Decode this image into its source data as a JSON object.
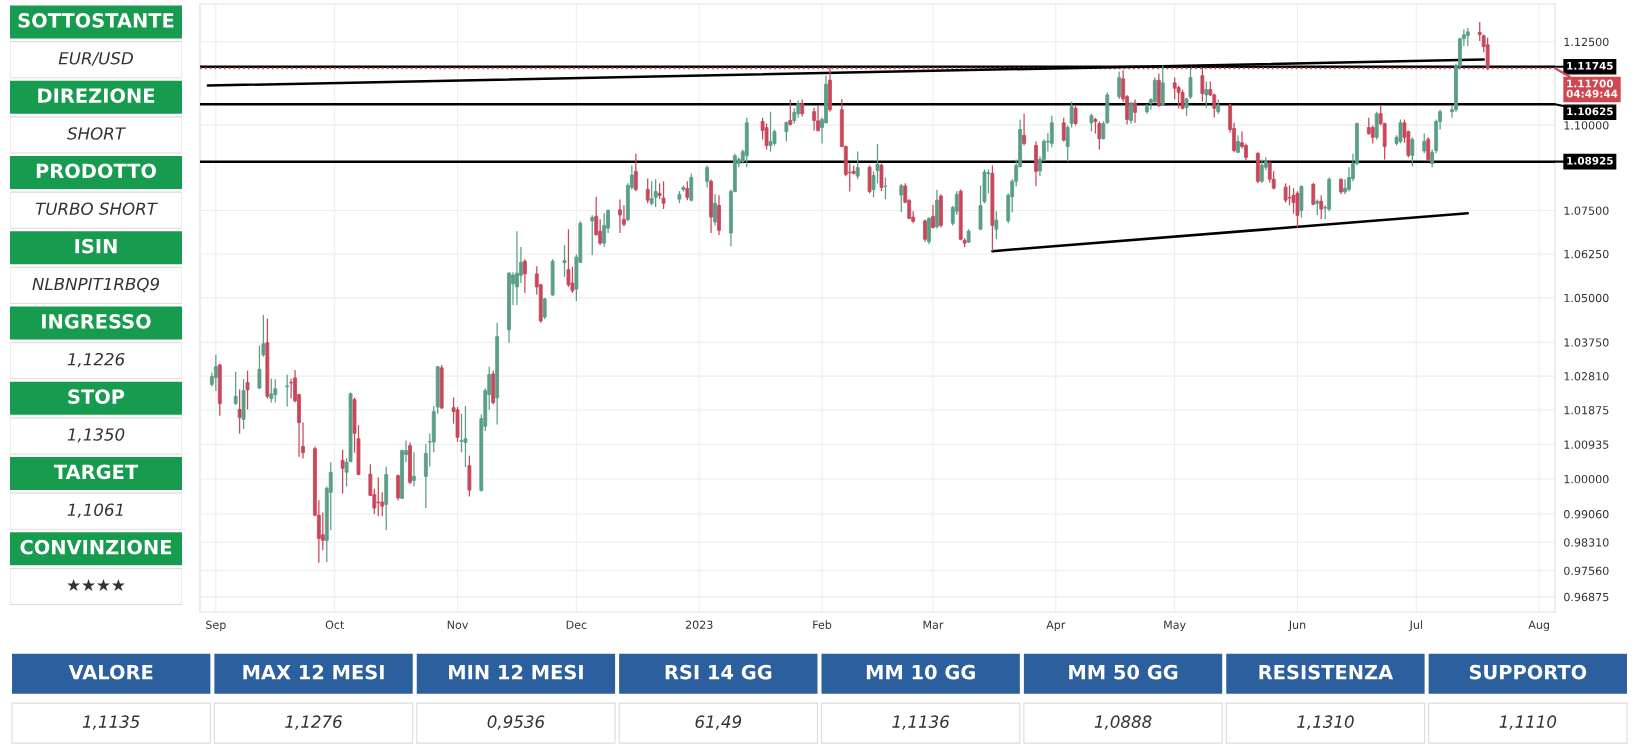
{
  "chart_data": [
    {
      "type": "other",
      "annotations": [
        "SOTTOSTANTE",
        "EUR/USD",
        "DIREZIONE",
        "SHORT",
        "PRODOTTO",
        "TURBO SHORT",
        "ISIN",
        "NLBNPIT1RBQ9",
        "INGRESSO",
        "1,1226",
        "STOP",
        "1,1350",
        "TARGET",
        "1,1061",
        "CONVINZIONE",
        "★★★★"
      ],
      "colors": [
        "#169b4f",
        "#169b4f",
        "#169b4f",
        "#169b4f",
        "#169b4f",
        "#169b4f",
        "#169b4f",
        "#169b4f"
      ]
    },
    {
      "type": "candlestick",
      "x": [
        "2022-08-31",
        "2022-09-01",
        "2022-09-02",
        "2022-09-06",
        "2022-09-07",
        "2022-09-08",
        "2022-09-09",
        "2022-09-12",
        "2022-09-13",
        "2022-09-14",
        "2022-09-15",
        "2022-09-16",
        "2022-09-19",
        "2022-09-20",
        "2022-09-21",
        "2022-09-22",
        "2022-09-23",
        "2022-09-26",
        "2022-09-27",
        "2022-09-28",
        "2022-09-29",
        "2022-09-30",
        "2022-10-03",
        "2022-10-04",
        "2022-10-05",
        "2022-10-06",
        "2022-10-07",
        "2022-10-10",
        "2022-10-11",
        "2022-10-12",
        "2022-10-13",
        "2022-10-14",
        "2022-10-17",
        "2022-10-18",
        "2022-10-19",
        "2022-10-20",
        "2022-10-21",
        "2022-10-24",
        "2022-10-25",
        "2022-10-26",
        "2022-10-27",
        "2022-10-28",
        "2022-10-31",
        "2022-11-01",
        "2022-11-02",
        "2022-11-03",
        "2022-11-04",
        "2022-11-07",
        "2022-11-08",
        "2022-11-09",
        "2022-11-10",
        "2022-11-11",
        "2022-11-14",
        "2022-11-15",
        "2022-11-16",
        "2022-11-17",
        "2022-11-18",
        "2022-11-21",
        "2022-11-22",
        "2022-11-23",
        "2022-11-25",
        "2022-11-28",
        "2022-11-29",
        "2022-11-30",
        "2022-12-01",
        "2022-12-02",
        "2022-12-05",
        "2022-12-06",
        "2022-12-07",
        "2022-12-08",
        "2022-12-09",
        "2022-12-12",
        "2022-12-13",
        "2022-12-14",
        "2022-12-15",
        "2022-12-16",
        "2022-12-19",
        "2022-12-20",
        "2022-12-21",
        "2022-12-22",
        "2022-12-23",
        "2022-12-27",
        "2022-12-28",
        "2022-12-29",
        "2022-12-30",
        "2023-01-03",
        "2023-01-04",
        "2023-01-05",
        "2023-01-06",
        "2023-01-09",
        "2023-01-10",
        "2023-01-11",
        "2023-01-12",
        "2023-01-13",
        "2023-01-17",
        "2023-01-18",
        "2023-01-19",
        "2023-01-20",
        "2023-01-23",
        "2023-01-24",
        "2023-01-25",
        "2023-01-26",
        "2023-01-27",
        "2023-01-30",
        "2023-01-31",
        "2023-02-01",
        "2023-02-02",
        "2023-02-03",
        "2023-02-06",
        "2023-02-07",
        "2023-02-08",
        "2023-02-09",
        "2023-02-10",
        "2023-02-13",
        "2023-02-14",
        "2023-02-15",
        "2023-02-16",
        "2023-02-17",
        "2023-02-21",
        "2023-02-22",
        "2023-02-23",
        "2023-02-24",
        "2023-02-27",
        "2023-02-28",
        "2023-03-01",
        "2023-03-02",
        "2023-03-03",
        "2023-03-06",
        "2023-03-07",
        "2023-03-08",
        "2023-03-09",
        "2023-03-10",
        "2023-03-13",
        "2023-03-14",
        "2023-03-15",
        "2023-03-16",
        "2023-03-17",
        "2023-03-20",
        "2023-03-21",
        "2023-03-22",
        "2023-03-23",
        "2023-03-24",
        "2023-03-27",
        "2023-03-28",
        "2023-03-29",
        "2023-03-30",
        "2023-03-31",
        "2023-04-03",
        "2023-04-04",
        "2023-04-05",
        "2023-04-06",
        "2023-04-10",
        "2023-04-11",
        "2023-04-12",
        "2023-04-13",
        "2023-04-14",
        "2023-04-17",
        "2023-04-18",
        "2023-04-19",
        "2023-04-20",
        "2023-04-21",
        "2023-04-24",
        "2023-04-25",
        "2023-04-26",
        "2023-04-27",
        "2023-04-28",
        "2023-05-01",
        "2023-05-02",
        "2023-05-03",
        "2023-05-04",
        "2023-05-05",
        "2023-05-08",
        "2023-05-09",
        "2023-05-10",
        "2023-05-11",
        "2023-05-12",
        "2023-05-15",
        "2023-05-16",
        "2023-05-17",
        "2023-05-18",
        "2023-05-19",
        "2023-05-22",
        "2023-05-23",
        "2023-05-24",
        "2023-05-25",
        "2023-05-26",
        "2023-05-29",
        "2023-05-30",
        "2023-05-31",
        "2023-06-01",
        "2023-06-02",
        "2023-06-05",
        "2023-06-06",
        "2023-06-07",
        "2023-06-08",
        "2023-06-09",
        "2023-06-12",
        "2023-06-13",
        "2023-06-14",
        "2023-06-15",
        "2023-06-16",
        "2023-06-19",
        "2023-06-20",
        "2023-06-21",
        "2023-06-22",
        "2023-06-23",
        "2023-06-26",
        "2023-06-27",
        "2023-06-28",
        "2023-06-29",
        "2023-06-30",
        "2023-07-03",
        "2023-07-04",
        "2023-07-05",
        "2023-07-06",
        "2023-07-07",
        "2023-07-10",
        "2023-07-11",
        "2023-07-12",
        "2023-07-13",
        "2023-07-14",
        "2023-07-17",
        "2023-07-18",
        "2023-07-19"
      ],
      "ohlc": [
        [
          1.0258,
          1.0291,
          1.0252,
          1.028
        ],
        [
          1.0277,
          1.034,
          1.024,
          1.0307
        ],
        [
          1.0312,
          1.0315,
          1.0172,
          1.0205
        ],
        [
          1.0205,
          1.0293,
          1.0202,
          1.0225
        ],
        [
          1.0189,
          1.0244,
          1.0123,
          1.0167
        ],
        [
          1.0162,
          1.0272,
          1.0136,
          1.0241
        ],
        [
          1.0263,
          1.0296,
          1.0189,
          1.0243
        ],
        [
          1.0248,
          1.0366,
          1.0245,
          1.03
        ],
        [
          1.034,
          1.0452,
          1.0335,
          1.0371
        ],
        [
          1.0374,
          1.0441,
          1.0219,
          1.0225
        ],
        [
          1.0219,
          1.0274,
          1.0208,
          1.0232
        ],
        [
          1.023,
          1.0272,
          1.0208,
          1.0246
        ],
        [
          1.0252,
          1.0285,
          1.0197,
          1.0254
        ],
        [
          1.0263,
          1.0274,
          1.0219,
          1.0262
        ],
        [
          1.0276,
          1.0298,
          1.0208,
          1.0213
        ],
        [
          1.023,
          1.0232,
          1.006,
          1.0153
        ],
        [
          1.0088,
          1.0153,
          1.0055,
          1.0071
        ],
        [
          1.0082,
          1.0088,
          0.99,
          0.9903
        ],
        [
          0.9903,
          0.9943,
          0.9777,
          0.9841
        ],
        [
          0.9851,
          0.991,
          0.981,
          0.9836
        ],
        [
          0.9836,
          0.998,
          0.9779,
          0.9975
        ],
        [
          0.9964,
          1.0045,
          0.9863,
          1.0018
        ],
        [
          1.005,
          1.0079,
          0.9961,
          1.0029
        ],
        [
          1.0018,
          1.0056,
          0.998,
          1.0045
        ],
        [
          1.0047,
          1.0236,
          1.0045,
          1.0232
        ],
        [
          1.0216,
          1.0222,
          1.0071,
          1.0124
        ],
        [
          1.0109,
          1.0146,
          1.001,
          1.0012
        ],
        [
          1.0013,
          1.004,
          0.9954,
          0.9956
        ],
        [
          0.9958,
          0.9974,
          0.9906,
          0.9922
        ],
        [
          0.9938,
          1.0004,
          0.99,
          0.9936
        ],
        [
          0.9938,
          0.9964,
          0.99,
          0.9927
        ],
        [
          0.9932,
          1.0034,
          0.9863,
          1.0012
        ],
        [
          1.0009,
          1.0012,
          0.9942,
          0.9949
        ],
        [
          0.9948,
          1.0079,
          0.9946,
          1.0077
        ],
        [
          1.0066,
          1.0104,
          1.0045,
          1.0077
        ],
        [
          1.009,
          1.0099,
          0.9986,
          0.9991
        ],
        [
          0.9996,
          1.0072,
          0.998,
          1.0007
        ],
        [
          1.0007,
          1.0094,
          0.9922,
          1.0069
        ],
        [
          1.01,
          1.0123,
          1.0034,
          1.0101
        ],
        [
          1.01,
          1.0198,
          1.0072,
          1.0183
        ],
        [
          1.0196,
          1.0309,
          1.0177,
          1.0307
        ],
        [
          1.0304,
          1.0312,
          1.019,
          1.0193
        ],
        [
          1.0194,
          1.0222,
          1.015,
          1.0183
        ],
        [
          1.0188,
          1.0196,
          1.0101,
          1.0113
        ],
        [
          1.0102,
          1.0177,
          1.0072,
          1.0104
        ],
        [
          1.0099,
          1.0199,
          1.0032,
          1.0109
        ],
        [
          1.0036,
          1.0063,
          0.9953,
          0.997
        ],
        [
          0.9969,
          1.0175,
          0.9966,
          1.0164
        ],
        [
          1.0143,
          1.0247,
          1.013,
          1.0241
        ],
        [
          1.023,
          1.0307,
          1.0188,
          1.0285
        ],
        [
          1.0287,
          1.0296,
          1.0203,
          1.0208
        ],
        [
          1.0221,
          1.043,
          1.0148,
          1.0391
        ],
        [
          1.041,
          1.0573,
          1.0374,
          1.057
        ],
        [
          1.054,
          1.0573,
          1.048,
          1.0565
        ],
        [
          1.0531,
          1.069,
          1.048,
          1.057
        ],
        [
          1.0564,
          1.0645,
          1.0542,
          1.0601
        ],
        [
          1.0604,
          1.061,
          1.0514,
          1.0568
        ],
        [
          1.0568,
          1.059,
          1.0509,
          1.0531
        ],
        [
          1.0537,
          1.054,
          1.043,
          1.0435
        ],
        [
          1.0446,
          1.05,
          1.044,
          1.0497
        ],
        [
          1.0508,
          1.061,
          1.0506,
          1.0604
        ],
        [
          1.06,
          1.065,
          1.056,
          1.0606
        ],
        [
          1.058,
          1.0696,
          1.0531,
          1.0537
        ],
        [
          1.0542,
          1.0588,
          1.0514,
          1.052
        ],
        [
          1.0525,
          1.0624,
          1.0491,
          1.0616
        ],
        [
          1.0601,
          1.0719,
          1.0599,
          1.0713
        ],
        [
          1.072,
          1.0736,
          1.0622,
          1.073
        ],
        [
          1.0733,
          1.079,
          1.0678,
          1.068
        ],
        [
          1.069,
          1.0725,
          1.065,
          1.0656
        ],
        [
          1.0656,
          1.0742,
          1.0645,
          1.0707
        ],
        [
          1.0699,
          1.0754,
          1.0685,
          1.075
        ],
        [
          1.0752,
          1.0782,
          1.0685,
          1.0737
        ],
        [
          1.0724,
          1.0765,
          1.0704,
          1.071
        ],
        [
          1.0724,
          1.0829,
          1.0719,
          1.0823
        ],
        [
          1.0817,
          1.0881,
          1.0811,
          1.0853
        ],
        [
          1.0864,
          1.0916,
          1.0806,
          1.0811
        ],
        [
          1.0811,
          1.0843,
          1.0771,
          1.078
        ],
        [
          1.0771,
          1.0835,
          1.0765,
          1.0785
        ],
        [
          1.0788,
          1.0841,
          1.076,
          1.0805
        ],
        [
          1.08,
          1.0829,
          1.0783,
          1.0794
        ],
        [
          1.0786,
          1.0835,
          1.0754,
          1.0771
        ],
        [
          1.0783,
          1.0806,
          1.0771,
          1.0797
        ],
        [
          1.0811,
          1.0823,
          1.0805,
          1.0817
        ],
        [
          1.0814,
          1.0835,
          1.078,
          1.0788
        ],
        [
          1.078,
          1.0858,
          1.0776,
          1.0846
        ],
        [
          1.0835,
          1.0881,
          1.0817,
          1.0875
        ],
        [
          1.0835,
          1.084,
          1.0685,
          1.0731
        ],
        [
          1.0717,
          1.0797,
          1.0707,
          1.0771
        ],
        [
          1.0765,
          1.0794,
          1.0679,
          1.0693
        ],
        [
          1.0685,
          1.0811,
          1.0647,
          1.0805
        ],
        [
          1.0805,
          1.0916,
          1.0803,
          1.091
        ],
        [
          1.0887,
          1.0905,
          1.0876,
          1.0899
        ],
        [
          1.0893,
          1.0928,
          1.0887,
          1.0922
        ],
        [
          1.091,
          1.1022,
          1.0876,
          1.1007
        ],
        [
          1.1011,
          1.1022,
          1.0958,
          1.0984
        ],
        [
          1.0993,
          1.1005,
          1.0928,
          1.094
        ],
        [
          1.094,
          1.104,
          1.0922,
          1.0952
        ],
        [
          1.0946,
          1.0987,
          1.094,
          1.0981
        ],
        [
          1.0981,
          1.1011,
          1.0952,
          1.1008
        ],
        [
          1.1014,
          1.1076,
          1.0999,
          1.1002
        ],
        [
          1.1014,
          1.105,
          1.1005,
          1.1038
        ],
        [
          1.1034,
          1.1073,
          1.1022,
          1.1064
        ],
        [
          1.1064,
          1.1076,
          1.1026,
          1.1034
        ],
        [
          1.104,
          1.1052,
          1.0984,
          1.1014
        ],
        [
          1.1013,
          1.1058,
          1.0981,
          1.0984
        ],
        [
          1.0993,
          1.1023,
          1.0946,
          1.1017
        ],
        [
          1.1007,
          1.1148,
          1.1005,
          1.1122
        ],
        [
          1.1134,
          1.1172,
          1.104,
          1.1046
        ],
        [
          1.1046,
          1.1078,
          1.0935,
          1.0937
        ],
        [
          1.0937,
          1.094,
          1.085,
          1.0855
        ],
        [
          1.0862,
          1.0887,
          1.0805,
          1.086
        ],
        [
          1.0864,
          1.0881,
          1.0855,
          1.0858
        ],
        [
          1.085,
          1.0922,
          1.0841,
          1.0875
        ],
        [
          1.0876,
          1.0881,
          1.08,
          1.0805
        ],
        [
          1.0811,
          1.0864,
          1.0788,
          1.0852
        ],
        [
          1.0866,
          1.0945,
          1.0829,
          1.0885
        ],
        [
          1.0882,
          1.0887,
          1.0806,
          1.0817
        ],
        [
          1.082,
          1.0846,
          1.0783,
          1.0821
        ],
        [
          1.0795,
          1.0828,
          1.0746,
          1.0822
        ],
        [
          1.0821,
          1.0829,
          1.0771,
          1.0774
        ],
        [
          1.078,
          1.0782,
          1.0725,
          1.0727
        ],
        [
          1.0731,
          1.0748,
          1.0713,
          1.0719
        ],
        [
          1.072,
          1.0724,
          1.066,
          1.0667
        ],
        [
          1.066,
          1.0731,
          1.0653,
          1.0727
        ],
        [
          1.0733,
          1.0766,
          1.0698,
          1.0701
        ],
        [
          1.0703,
          1.081,
          1.0698,
          1.078
        ],
        [
          1.0792,
          1.0797,
          1.0701,
          1.0707
        ],
        [
          1.0713,
          1.0764,
          1.0707,
          1.0759
        ],
        [
          1.0748,
          1.0806,
          1.0738,
          1.0797
        ],
        [
          1.0806,
          1.0811,
          1.0664,
          1.0667
        ],
        [
          1.0664,
          1.067,
          1.0644,
          1.0656
        ],
        [
          1.0659,
          1.0696,
          1.0656,
          1.069
        ],
        [
          1.0696,
          1.0823,
          1.0693,
          1.0764
        ],
        [
          1.0776,
          1.087,
          1.0771,
          1.0862
        ],
        [
          1.0857,
          1.087,
          1.08,
          1.086
        ],
        [
          1.0858,
          1.0881,
          1.0633,
          1.0707
        ],
        [
          1.0696,
          1.0748,
          1.0667,
          1.0722
        ],
        [
          1.072,
          1.08,
          1.0713,
          1.0794
        ],
        [
          1.079,
          1.0841,
          1.0744,
          1.0835
        ],
        [
          1.0835,
          1.0899,
          1.082,
          1.0881
        ],
        [
          1.0878,
          1.1017,
          1.0875,
          1.0987
        ],
        [
          1.097,
          1.1034,
          1.094,
          1.0946
        ],
        [
          1.094,
          1.0952,
          1.0821,
          1.0864
        ],
        [
          1.0865,
          1.0908,
          1.085,
          1.0899
        ],
        [
          1.0899,
          1.0958,
          1.0893,
          1.0952
        ],
        [
          1.095,
          1.0976,
          1.0922,
          1.0953
        ],
        [
          1.0946,
          1.1028,
          1.0935,
          1.1007
        ],
        [
          1.1007,
          1.1022,
          1.0952,
          1.0956
        ],
        [
          1.0937,
          1.0999,
          1.0893,
          1.0993
        ],
        [
          1.1005,
          1.107,
          1.0993,
          1.1055
        ],
        [
          1.105,
          1.1058,
          1.0999,
          1.1005
        ],
        [
          1.1007,
          1.1034,
          1.0981,
          1.1028
        ],
        [
          1.1017,
          1.1022,
          1.0975,
          1.1011
        ],
        [
          1.1005,
          1.1011,
          1.0928,
          1.096
        ],
        [
          1.096,
          1.1011,
          1.0958,
          1.1005
        ],
        [
          1.1007,
          1.1097,
          1.1005,
          1.109
        ],
        [
          1.1085,
          1.116,
          1.1078,
          1.1142
        ],
        [
          1.1138,
          1.1164,
          1.107,
          1.1078
        ],
        [
          1.1085,
          1.109,
          1.1002,
          1.1017
        ],
        [
          1.1014,
          1.107,
          1.1005,
          1.1064
        ],
        [
          1.1066,
          1.1076,
          1.1007,
          1.1038
        ],
        [
          1.104,
          1.1064,
          1.1034,
          1.1055
        ],
        [
          1.1065,
          1.108,
          1.1046,
          1.1076
        ],
        [
          1.107,
          1.1142,
          1.1066,
          1.1134
        ],
        [
          1.1134,
          1.1154,
          1.1054,
          1.1058
        ],
        [
          1.1061,
          1.1178,
          1.1058,
          1.1126
        ],
        [
          1.1126,
          1.1142,
          1.1076,
          1.111
        ],
        [
          1.1112,
          1.1118,
          1.105,
          1.1097
        ],
        [
          1.1097,
          1.1106,
          1.1046,
          1.105
        ],
        [
          1.1052,
          1.1082,
          1.1028,
          1.1078
        ],
        [
          1.1084,
          1.1172,
          1.1078,
          1.1142
        ],
        [
          1.1148,
          1.1172,
          1.107,
          1.1094
        ],
        [
          1.109,
          1.113,
          1.1052,
          1.1106
        ],
        [
          1.1106,
          1.113,
          1.1087,
          1.109
        ],
        [
          1.109,
          1.1094,
          1.1023,
          1.105
        ],
        [
          1.104,
          1.1076,
          1.1033,
          1.106
        ],
        [
          1.106,
          1.1064,
          1.0978,
          1.0987
        ],
        [
          1.099,
          1.1007,
          1.092,
          1.0925
        ],
        [
          1.092,
          1.097,
          1.0917,
          1.0952
        ],
        [
          1.0948,
          1.0981,
          1.0931,
          1.0937
        ],
        [
          1.094,
          1.0946,
          1.0897,
          1.0905
        ],
        [
          1.0917,
          1.092,
          1.0829,
          1.0835
        ],
        [
          1.0835,
          1.0899,
          1.0831,
          1.0882
        ],
        [
          1.0876,
          1.0905,
          1.0868,
          1.0893
        ],
        [
          1.0888,
          1.0893,
          1.0831,
          1.0841
        ],
        [
          1.0841,
          1.0864,
          1.0811,
          1.0815
        ],
        [
          1.0818,
          1.0829,
          1.0773,
          1.078
        ],
        [
          1.0788,
          1.0823,
          1.0765,
          1.0786
        ],
        [
          1.0794,
          1.0815,
          1.0741,
          1.0773
        ],
        [
          1.08,
          1.0806,
          1.0701,
          1.0736
        ],
        [
          1.075,
          1.0823,
          1.073,
          1.082
        ],
        [
          1.0826,
          1.0831,
          1.0765,
          1.0768
        ],
        [
          1.0771,
          1.0782,
          1.0736,
          1.0777
        ],
        [
          1.0777,
          1.0794,
          1.0725,
          1.0754
        ],
        [
          1.0757,
          1.0765,
          1.0725,
          1.0759
        ],
        [
          1.0754,
          1.0846,
          1.0748,
          1.0841
        ],
        [
          1.0841,
          1.0843,
          1.0797,
          1.0804
        ],
        [
          1.0804,
          1.0841,
          1.0797,
          1.0815
        ],
        [
          1.0811,
          1.0876,
          1.0805,
          1.0846
        ],
        [
          1.0843,
          1.0916,
          1.0835,
          1.0887
        ],
        [
          1.0887,
          1.1007,
          1.0881,
          1.1005
        ],
        [
          1.0993,
          1.1022,
          1.0972,
          1.0975
        ],
        [
          1.0993,
          1.0999,
          1.0946,
          1.0964
        ],
        [
          1.0964,
          1.104,
          1.0958,
          1.1034
        ],
        [
          1.1034,
          1.1058,
          1.0999,
          1.1005
        ],
        [
          1.1005,
          1.1007,
          1.0899,
          1.0937
        ],
        [
          1.0946,
          1.097,
          1.094,
          1.0964
        ],
        [
          1.0952,
          1.1017,
          1.0946,
          1.1007
        ],
        [
          1.1007,
          1.1017,
          1.0948,
          1.0964
        ],
        [
          1.0981,
          1.0984,
          1.0905,
          1.0911
        ],
        [
          1.0911,
          1.0964,
          1.0878,
          1.0958
        ],
        [
          1.0924,
          1.0975,
          1.0917,
          1.0952
        ],
        [
          1.0958,
          1.0964,
          1.0893,
          1.0899
        ],
        [
          1.0887,
          1.0928,
          1.0876,
          1.092
        ],
        [
          1.0925,
          1.1017,
          1.0917,
          1.1011
        ],
        [
          1.1011,
          1.1046,
          1.0987,
          1.104
        ],
        [
          1.104,
          1.1058,
          1.1022,
          1.1046
        ],
        [
          1.1046,
          1.1184,
          1.104,
          1.1178
        ],
        [
          1.1176,
          1.1262,
          1.1166,
          1.1259
        ],
        [
          1.1259,
          1.1287,
          1.1237,
          1.1271
        ],
        [
          1.1269,
          1.1292,
          1.1237,
          1.128
        ],
        [
          1.1278,
          1.131,
          1.1252,
          1.1272
        ],
        [
          1.1268,
          1.1272,
          1.1218,
          1.1235
        ],
        [
          1.1241,
          1.1262,
          1.1164,
          1.117
        ]
      ],
      "colors": [
        "#5a9e88",
        "#5a9e88",
        "#c9475b",
        "#5a9e88",
        "#c9475b",
        "#5a9e88",
        "#c9475b",
        "#5a9e88",
        "#5a9e88",
        "#c9475b",
        "#5a9e88",
        "#5a9e88",
        "#5a9e88",
        "#c9475b",
        "#c9475b",
        "#c9475b",
        "#c9475b",
        "#c9475b",
        "#c9475b",
        "#c9475b",
        "#5a9e88",
        "#5a9e88",
        "#c9475b",
        "#5a9e88",
        "#5a9e88",
        "#c9475b",
        "#c9475b",
        "#c9475b",
        "#c9475b",
        "#c9475b",
        "#c9475b",
        "#5a9e88",
        "#c9475b",
        "#5a9e88",
        "#5a9e88",
        "#c9475b",
        "#5a9e88",
        "#5a9e88",
        "#5a9e88",
        "#5a9e88",
        "#5a9e88",
        "#c9475b",
        "#c9475b",
        "#c9475b",
        "#5a9e88",
        "#5a9e88",
        "#c9475b",
        "#5a9e88",
        "#5a9e88",
        "#5a9e88",
        "#c9475b",
        "#5a9e88",
        "#5a9e88",
        "#5a9e88",
        "#5a9e88",
        "#5a9e88",
        "#c9475b",
        "#c9475b",
        "#c9475b",
        "#5a9e88",
        "#5a9e88",
        "#5a9e88",
        "#c9475b",
        "#c9475b",
        "#5a9e88",
        "#5a9e88",
        "#5a9e88",
        "#c9475b",
        "#c9475b",
        "#5a9e88",
        "#5a9e88",
        "#c9475b",
        "#c9475b",
        "#5a9e88",
        "#5a9e88",
        "#c9475b",
        "#c9475b",
        "#5a9e88",
        "#5a9e88",
        "#c9475b",
        "#c9475b",
        "#5a9e88",
        "#5a9e88",
        "#c9475b",
        "#5a9e88",
        "#5a9e88",
        "#c9475b",
        "#5a9e88",
        "#c9475b",
        "#5a9e88",
        "#5a9e88",
        "#5a9e88",
        "#5a9e88",
        "#5a9e88",
        "#c9475b",
        "#c9475b",
        "#5a9e88",
        "#5a9e88",
        "#5a9e88",
        "#c9475b",
        "#5a9e88",
        "#5a9e88",
        "#c9475b",
        "#c9475b",
        "#c9475b",
        "#5a9e88",
        "#5a9e88",
        "#c9475b",
        "#c9475b",
        "#c9475b",
        "#c9475b",
        "#c9475b",
        "#5a9e88",
        "#c9475b",
        "#5a9e88",
        "#5a9e88",
        "#c9475b",
        "#5a9e88",
        "#5a9e88",
        "#c9475b",
        "#c9475b",
        "#c9475b",
        "#c9475b",
        "#5a9e88",
        "#c9475b",
        "#5a9e88",
        "#c9475b",
        "#5a9e88",
        "#5a9e88",
        "#c9475b",
        "#c9475b",
        "#5a9e88",
        "#5a9e88",
        "#5a9e88",
        "#5a9e88",
        "#c9475b",
        "#5a9e88",
        "#5a9e88",
        "#5a9e88",
        "#5a9e88",
        "#5a9e88",
        "#c9475b",
        "#c9475b",
        "#5a9e88",
        "#5a9e88",
        "#5a9e88",
        "#5a9e88",
        "#c9475b",
        "#5a9e88",
        "#5a9e88",
        "#c9475b",
        "#5a9e88",
        "#c9475b",
        "#c9475b",
        "#5a9e88",
        "#5a9e88",
        "#5a9e88",
        "#c9475b",
        "#c9475b",
        "#5a9e88",
        "#c9475b",
        "#5a9e88",
        "#5a9e88",
        "#5a9e88",
        "#c9475b",
        "#5a9e88",
        "#c9475b",
        "#c9475b",
        "#c9475b",
        "#5a9e88",
        "#5a9e88",
        "#c9475b",
        "#5a9e88",
        "#c9475b",
        "#c9475b",
        "#5a9e88",
        "#c9475b",
        "#c9475b",
        "#5a9e88",
        "#c9475b",
        "#c9475b",
        "#c9475b",
        "#5a9e88",
        "#5a9e88",
        "#c9475b",
        "#c9475b",
        "#c9475b",
        "#c9475b",
        "#c9475b",
        "#c9475b",
        "#5a9e88",
        "#c9475b",
        "#5a9e88",
        "#c9475b",
        "#5a9e88",
        "#5a9e88",
        "#c9475b",
        "#5a9e88",
        "#5a9e88",
        "#5a9e88",
        "#5a9e88",
        "#c9475b",
        "#c9475b",
        "#5a9e88",
        "#c9475b",
        "#c9475b",
        "#5a9e88",
        "#5a9e88",
        "#c9475b",
        "#c9475b",
        "#5a9e88",
        "#5a9e88",
        "#c9475b",
        "#5a9e88",
        "#5a9e88",
        "#5a9e88",
        "#5a9e88",
        "#5a9e88",
        "#5a9e88",
        "#5a9e88",
        "#5a9e88",
        "#c9475b",
        "#c9475b",
        "#c9475b"
      ],
      "series": [
        {
          "type": "line",
          "x": [
            "2022-08-30",
            "2023-07-18"
          ],
          "values": [
            1.1118,
            1.1196
          ],
          "color": "#000000"
        },
        {
          "type": "line",
          "x": [
            "2023-03-16",
            "2023-07-14"
          ],
          "values": [
            1.0633,
            1.0742
          ],
          "color": "#000000"
        }
      ],
      "ref_lines": [
        {
          "axis": "y",
          "value": 1.11745,
          "label": "1.11745",
          "color": "#000000",
          "line_style": "solid"
        },
        {
          "axis": "y",
          "value": 1.117,
          "label": "1.11700\n04:49:44",
          "color": "#d2474f",
          "line_style": "dotted"
        },
        {
          "axis": "y",
          "value": 1.10625,
          "label": "1.10625",
          "color": "#000000",
          "line_style": "solid"
        },
        {
          "axis": "y",
          "value": 1.08925,
          "label": "1.08925",
          "color": "#000000",
          "line_style": "solid"
        }
      ],
      "log": true,
      "xlim": [
        "2022-08-28",
        "2023-08-05"
      ],
      "xticks": [
        {
          "value": "2022-09-01",
          "label": "Sep"
        },
        {
          "value": "2022-10-01",
          "label": "Oct"
        },
        {
          "value": "2022-11-01",
          "label": "Nov"
        },
        {
          "value": "2022-12-01",
          "label": "Dec"
        },
        {
          "value": "2023-01-01",
          "label": "2023"
        },
        {
          "value": "2023-02-01",
          "label": "Feb"
        },
        {
          "value": "2023-03-01",
          "label": "Mar"
        },
        {
          "value": "2023-04-01",
          "label": "Apr"
        },
        {
          "value": "2023-05-01",
          "label": "May"
        },
        {
          "value": "2023-06-01",
          "label": "Jun"
        },
        {
          "value": "2023-07-01",
          "label": "Jul"
        },
        {
          "value": "2023-08-01",
          "label": "Aug"
        }
      ],
      "ylim": [
        0.9648,
        1.1365
      ],
      "yticks": [
        {
          "value": 1.125,
          "label": "1.12500"
        },
        {
          "value": 1.1,
          "label": "1.10000"
        },
        {
          "value": 1.075,
          "label": "1.07500"
        },
        {
          "value": 1.0625,
          "label": "1.06250"
        },
        {
          "value": 1.05,
          "label": "1.05000"
        },
        {
          "value": 1.0375,
          "label": "1.03750"
        },
        {
          "value": 1.0281,
          "label": "1.02810"
        },
        {
          "value": 1.01875,
          "label": "1.01875"
        },
        {
          "value": 1.00935,
          "label": "1.00935"
        },
        {
          "value": 1.0,
          "label": "1.00000"
        },
        {
          "value": 0.9906,
          "label": "0.99060"
        },
        {
          "value": 0.9831,
          "label": "0.98310"
        },
        {
          "value": 0.9756,
          "label": "0.97560"
        },
        {
          "value": 0.96875,
          "label": "0.96875"
        }
      ],
      "grid": true
    },
    {
      "type": "other",
      "annotations": [
        "VALORE",
        "1,1135",
        "MAX 12 MESI",
        "1,1276",
        "MIN 12 MESI",
        "0,9536",
        "RSI 14 GG",
        "61,49",
        "MM 10 GG",
        "1,1136",
        "MM 50 GG",
        "1,0888",
        "RESISTENZA",
        "1,1310",
        "SUPPORTO",
        "1,1110"
      ],
      "colors": [
        "#2c5f9e",
        "#2c5f9e",
        "#2c5f9e",
        "#2c5f9e",
        "#2c5f9e",
        "#2c5f9e",
        "#2c5f9e",
        "#2c5f9e"
      ]
    }
  ]
}
